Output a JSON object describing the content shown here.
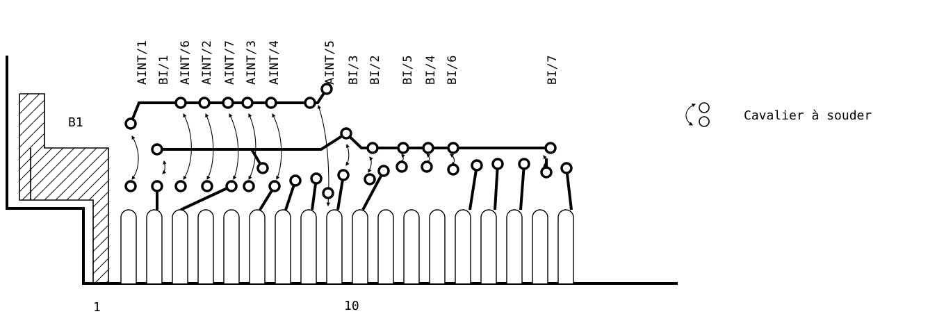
{
  "diagram": {
    "connector_label": "B1",
    "pin_numbers": {
      "first": "1",
      "tenth": "10"
    },
    "legend": {
      "text": "Cavalier à souder"
    },
    "signal_labels": [
      "AINT/1",
      "BI/1",
      "AINT/6",
      "AINT/2",
      "AINT/7",
      "AINT/3",
      "AINT/4",
      "AINT/5",
      "BI/3",
      "BI/2",
      "BI/5",
      "BI/4",
      "BI/6",
      "BI/7"
    ]
  }
}
